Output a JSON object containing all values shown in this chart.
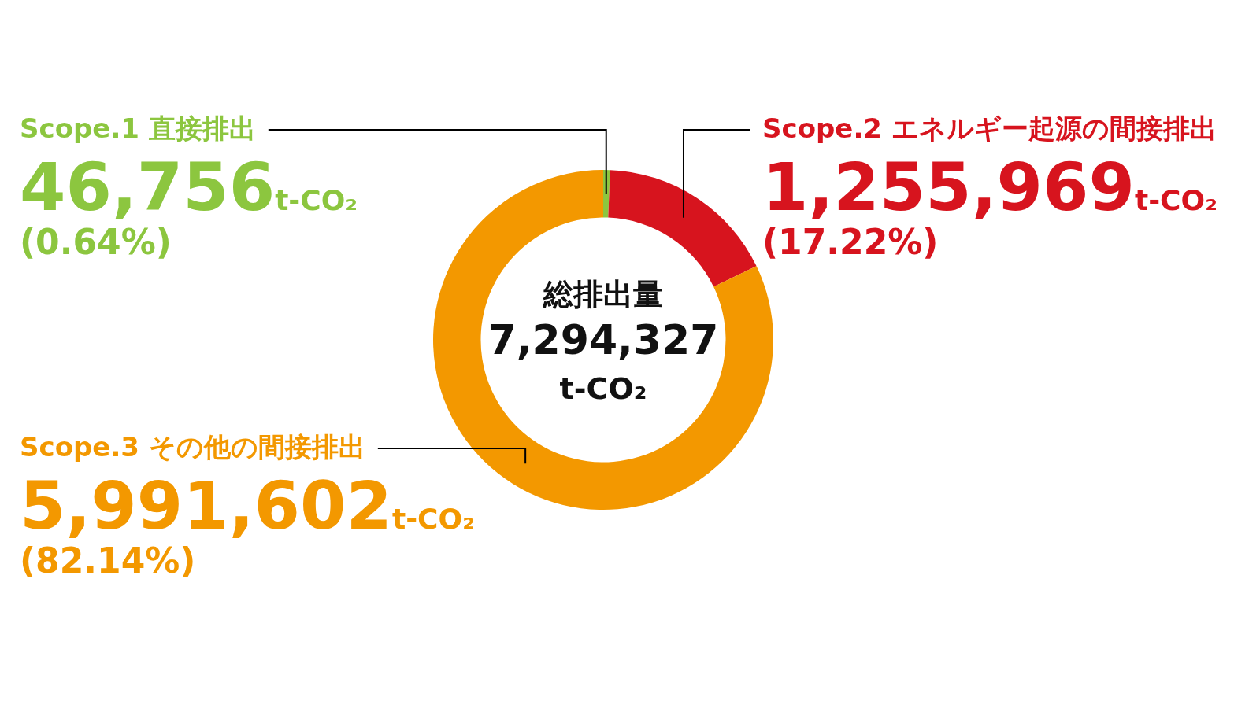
{
  "chart_data": {
    "type": "donut",
    "categories": [
      "Scope.1 直接排出",
      "Scope.2 エネルギー起源の間接排出",
      "Scope.3 その他の間接排出"
    ],
    "values": [
      46756,
      1255969,
      5991602
    ],
    "colors": [
      "#8cc63f",
      "#d7141e",
      "#f39800"
    ],
    "value_labels": [
      "46,756t-CO₂",
      "1,255,969t-CO₂",
      "5,991,602t-CO₂"
    ],
    "annotations": [
      "総排出量",
      "7,294,327",
      "t-CO₂",
      "(0.64%)",
      "(17.22%)",
      "(82.14%)"
    ]
  }
}
